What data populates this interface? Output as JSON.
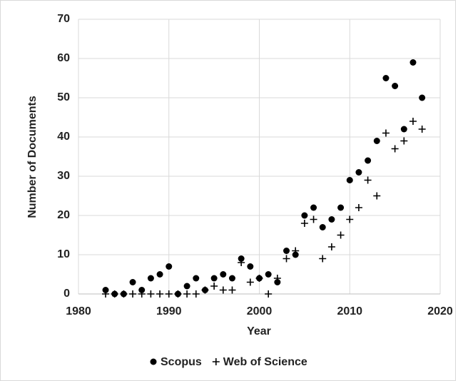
{
  "chart_data": {
    "type": "scatter",
    "x_label": "Year",
    "y_label": "Number of Documents",
    "x": [
      1983,
      1984,
      1985,
      1986,
      1987,
      1988,
      1989,
      1990,
      1991,
      1992,
      1993,
      1994,
      1995,
      1996,
      1997,
      1998,
      1999,
      2000,
      2001,
      2002,
      2003,
      2004,
      2005,
      2006,
      2007,
      2008,
      2009,
      2010,
      2011,
      2012,
      2013,
      2014,
      2015,
      2016,
      2017,
      2018
    ],
    "series": [
      {
        "name": "Scopus",
        "color": "#000000",
        "marker": "circle",
        "values": [
          1,
          0,
          0,
          3,
          1,
          4,
          5,
          7,
          0,
          2,
          4,
          1,
          4,
          5,
          4,
          9,
          7,
          4,
          5,
          3,
          11,
          10,
          20,
          22,
          17,
          19,
          22,
          29,
          31,
          34,
          39,
          55,
          53,
          42,
          59,
          50
        ]
      },
      {
        "name": "Web of Science",
        "color": "#000000",
        "marker": "plus",
        "values": [
          0,
          0,
          0,
          0,
          0,
          0,
          0,
          0,
          0,
          0,
          0,
          1,
          2,
          1,
          1,
          8,
          3,
          4,
          0,
          4,
          9,
          11,
          18,
          19,
          9,
          12,
          15,
          19,
          22,
          29,
          25,
          41,
          37,
          39,
          44,
          42
        ]
      }
    ],
    "xlim": [
      1980,
      2020
    ],
    "xticks": [
      1980,
      1990,
      2000,
      2010,
      2020
    ],
    "ylim": [
      0,
      70
    ],
    "yticks": [
      0,
      10,
      20,
      30,
      40,
      50,
      60,
      70
    ],
    "grid": true,
    "legend": "bottom"
  }
}
